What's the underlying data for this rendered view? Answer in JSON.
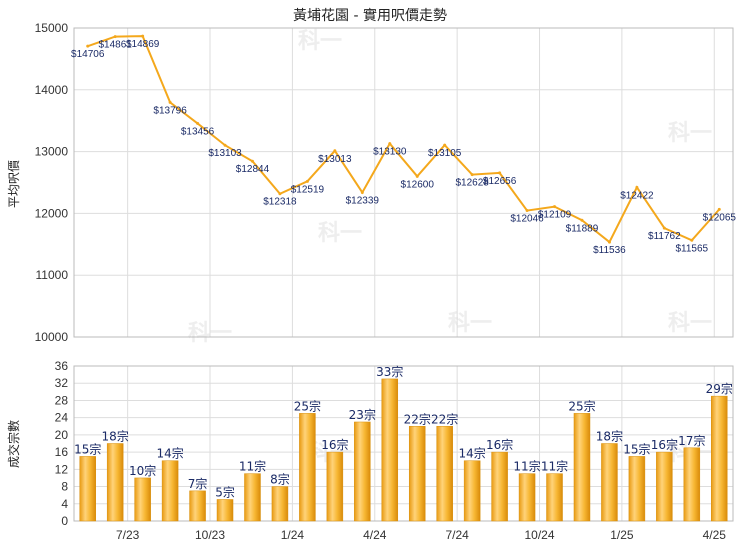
{
  "chart_data": [
    {
      "type": "line",
      "title": "黃埔花園 - 實用呎價走勢",
      "ylabel": "平均呎價",
      "ylim": [
        10000,
        15000
      ],
      "yticks": [
        10000,
        11000,
        12000,
        13000,
        14000,
        15000
      ],
      "series": [
        {
          "values": [
            14706,
            14861,
            14869,
            13796,
            13456,
            13103,
            12844,
            12318,
            12519,
            13013,
            12339,
            13130,
            12600,
            13105,
            12628,
            12656,
            12046,
            12109,
            11889,
            11536,
            12422,
            11762,
            11565,
            12065
          ],
          "labels": [
            "$14706",
            "$14861",
            "$14869",
            "$13796",
            "$13456",
            "$13103",
            "$12844",
            "$12318",
            "$12519",
            "$13013",
            "$12339",
            "$13130",
            "$12600",
            "$13105",
            "$12628",
            "$12656",
            "$12046",
            "$12109",
            "$11889",
            "$11536",
            "$12422",
            "$11762",
            "$11565",
            "$12065"
          ],
          "color": "#f4a81c"
        }
      ],
      "grid": true
    },
    {
      "type": "bar",
      "ylabel": "成交宗數",
      "ylim": [
        0,
        36
      ],
      "yticks": [
        0,
        4,
        8,
        12,
        16,
        20,
        24,
        28,
        32,
        36
      ],
      "values": [
        15,
        18,
        10,
        14,
        7,
        5,
        11,
        8,
        25,
        16,
        23,
        33,
        22,
        22,
        14,
        16,
        11,
        11,
        25,
        18,
        15,
        16,
        17,
        29
      ],
      "labels": [
        "15宗",
        "18宗",
        "10宗",
        "14宗",
        "7宗",
        "5宗",
        "11宗",
        "8宗",
        "25宗",
        "16宗",
        "23宗",
        "33宗",
        "22宗",
        "22宗",
        "14宗",
        "16宗",
        "11宗",
        "11宗",
        "25宗",
        "18宗",
        "15宗",
        "16宗",
        "17宗",
        "29宗"
      ],
      "color": "#f4a81c",
      "grid": true
    }
  ],
  "x_ticks": [
    "7/23",
    "10/23",
    "1/24",
    "4/24",
    "7/24",
    "10/24",
    "1/25",
    "4/25"
  ],
  "watermark": "科一"
}
